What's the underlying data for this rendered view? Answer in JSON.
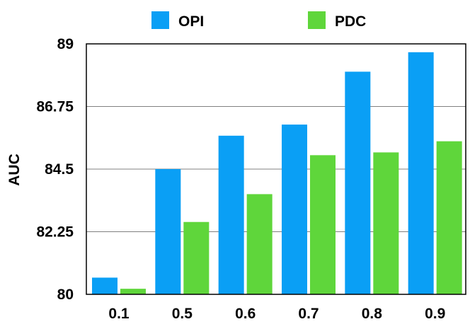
{
  "chart_data": {
    "type": "bar",
    "categories": [
      "0.1",
      "0.5",
      "0.6",
      "0.7",
      "0.8",
      "0.9"
    ],
    "series": [
      {
        "name": "OPI",
        "color": "#0a9ff5",
        "values": [
          80.6,
          84.5,
          85.7,
          86.1,
          88.0,
          88.7
        ]
      },
      {
        "name": "PDC",
        "color": "#5fd63b",
        "values": [
          80.2,
          82.6,
          83.6,
          85.0,
          85.1,
          85.5
        ]
      }
    ],
    "ylabel": "AUC",
    "xlabel": "",
    "ylim": [
      80,
      89
    ],
    "yticks": [
      "80",
      "82.25",
      "84.5",
      "86.75",
      "89"
    ],
    "grid": true,
    "legend_position": "top"
  }
}
